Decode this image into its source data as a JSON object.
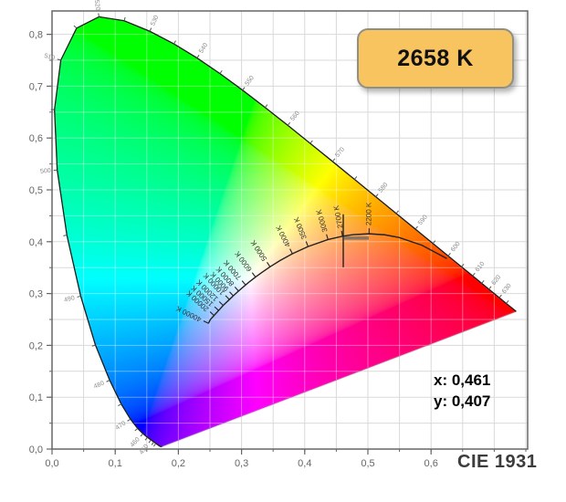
{
  "badge": {
    "label": "2658 K",
    "bg_color": "#f7c45f",
    "border_color": "#8f8f85"
  },
  "readout": {
    "x_line": "x: 0,461",
    "y_line": "y: 0,407"
  },
  "footer": {
    "label": "CIE 1931"
  },
  "chart_data": {
    "type": "area",
    "subtype": "cie-1931-xy-chromaticity-diagram",
    "title": "CIE 1931",
    "point": {
      "x": 0.461,
      "y": 0.407,
      "cct_label": "2658 K"
    },
    "axes": {
      "x": {
        "min": 0,
        "max": 0.7529,
        "grid_step": 0.05,
        "ticks": [
          {
            "v": 0.0,
            "label": "0,0"
          },
          {
            "v": 0.1,
            "label": "0,1"
          },
          {
            "v": 0.2,
            "label": "0,2"
          },
          {
            "v": 0.3,
            "label": "0,3"
          },
          {
            "v": 0.4,
            "label": "0,4"
          },
          {
            "v": 0.5,
            "label": "0,5"
          },
          {
            "v": 0.6,
            "label": "0,6"
          }
        ]
      },
      "y": {
        "min": 0,
        "max": 0.8451,
        "grid_step": 0.05,
        "ticks": [
          {
            "v": 0.0,
            "label": "0,0"
          },
          {
            "v": 0.1,
            "label": "0,1"
          },
          {
            "v": 0.2,
            "label": "0,2"
          },
          {
            "v": 0.3,
            "label": "0,3"
          },
          {
            "v": 0.4,
            "label": "0,4"
          },
          {
            "v": 0.5,
            "label": "0,5"
          },
          {
            "v": 0.6,
            "label": "0,6"
          },
          {
            "v": 0.7,
            "label": "0,7"
          },
          {
            "v": 0.8,
            "label": "0,8"
          }
        ]
      }
    },
    "spectral_locus": [
      [
        380,
        0.1741,
        0.005
      ],
      [
        390,
        0.1738,
        0.0049
      ],
      [
        400,
        0.1733,
        0.0048
      ],
      [
        410,
        0.1726,
        0.0048
      ],
      [
        420,
        0.1714,
        0.0051
      ],
      [
        430,
        0.1689,
        0.0069
      ],
      [
        440,
        0.1644,
        0.0109
      ],
      [
        445,
        0.1611,
        0.0138
      ],
      [
        450,
        0.1566,
        0.0177
      ],
      [
        455,
        0.151,
        0.0227
      ],
      [
        460,
        0.144,
        0.0297
      ],
      [
        465,
        0.1355,
        0.0399
      ],
      [
        470,
        0.1241,
        0.0578
      ],
      [
        475,
        0.1096,
        0.0868
      ],
      [
        480,
        0.0913,
        0.1327
      ],
      [
        485,
        0.0687,
        0.2007
      ],
      [
        490,
        0.0454,
        0.295
      ],
      [
        495,
        0.0235,
        0.4127
      ],
      [
        500,
        0.0082,
        0.5384
      ],
      [
        505,
        0.0039,
        0.6548
      ],
      [
        510,
        0.0139,
        0.7502
      ],
      [
        515,
        0.0389,
        0.812
      ],
      [
        520,
        0.0743,
        0.8338
      ],
      [
        525,
        0.1142,
        0.8262
      ],
      [
        530,
        0.1547,
        0.8059
      ],
      [
        535,
        0.1929,
        0.7816
      ],
      [
        540,
        0.2296,
        0.7543
      ],
      [
        545,
        0.2658,
        0.7243
      ],
      [
        550,
        0.3016,
        0.6923
      ],
      [
        555,
        0.3373,
        0.6589
      ],
      [
        560,
        0.3731,
        0.6245
      ],
      [
        565,
        0.4087,
        0.5896
      ],
      [
        570,
        0.4441,
        0.5547
      ],
      [
        575,
        0.4788,
        0.5202
      ],
      [
        580,
        0.5125,
        0.4866
      ],
      [
        585,
        0.5448,
        0.4544
      ],
      [
        590,
        0.5752,
        0.4242
      ],
      [
        595,
        0.6029,
        0.3965
      ],
      [
        600,
        0.627,
        0.3725
      ],
      [
        605,
        0.6482,
        0.3514
      ],
      [
        610,
        0.6658,
        0.334
      ],
      [
        615,
        0.6801,
        0.3197
      ],
      [
        620,
        0.6915,
        0.3083
      ],
      [
        630,
        0.7079,
        0.292
      ],
      [
        640,
        0.719,
        0.2809
      ],
      [
        650,
        0.726,
        0.274
      ],
      [
        700,
        0.7347,
        0.2653
      ]
    ],
    "wavelength_labels": [
      450,
      460,
      470,
      480,
      490,
      500,
      510,
      520,
      530,
      540,
      550,
      560,
      570,
      580,
      590,
      600,
      610,
      620,
      630
    ],
    "planckian_locus": [
      [
        1200,
        0.6249,
        0.3676
      ],
      [
        1500,
        0.5857,
        0.3931
      ],
      [
        1800,
        0.5493,
        0.4082
      ],
      [
        2000,
        0.5267,
        0.4133
      ],
      [
        2200,
        0.5018,
        0.4153
      ],
      [
        2500,
        0.477,
        0.4137
      ],
      [
        2700,
        0.4599,
        0.4106
      ],
      [
        3000,
        0.4369,
        0.4041
      ],
      [
        3500,
        0.4053,
        0.3907
      ],
      [
        4000,
        0.3805,
        0.3768
      ],
      [
        4500,
        0.3608,
        0.3636
      ],
      [
        5000,
        0.3451,
        0.3516
      ],
      [
        5500,
        0.3323,
        0.3408
      ],
      [
        6000,
        0.3221,
        0.3318
      ],
      [
        6500,
        0.3135,
        0.3237
      ],
      [
        7000,
        0.3064,
        0.3166
      ],
      [
        8000,
        0.2952,
        0.3048
      ],
      [
        9000,
        0.2869,
        0.2956
      ],
      [
        10000,
        0.2807,
        0.2884
      ],
      [
        12000,
        0.2709,
        0.277
      ],
      [
        15000,
        0.2637,
        0.2673
      ],
      [
        20000,
        0.2565,
        0.2577
      ],
      [
        30000,
        0.2506,
        0.2498
      ],
      [
        40000,
        0.2476,
        0.2425
      ]
    ],
    "temperature_labels": [
      {
        "t": 2200,
        "label": "2200 K"
      },
      {
        "t": 2700,
        "label": "2700 K"
      },
      {
        "t": 3000,
        "label": "3000 K"
      },
      {
        "t": 3500,
        "label": "3500 K"
      },
      {
        "t": 4000,
        "label": "4000 K"
      },
      {
        "t": 5000,
        "label": "5000 K"
      },
      {
        "t": 6000,
        "label": "6000 K"
      },
      {
        "t": 7000,
        "label": "7000 K"
      },
      {
        "t": 8000,
        "label": "8000 K"
      },
      {
        "t": 9000,
        "label": "9000 K"
      },
      {
        "t": 10000,
        "label": "10000 K"
      },
      {
        "t": 12000,
        "label": "12000 K"
      },
      {
        "t": 15000,
        "label": "15000 K"
      },
      {
        "t": 20000,
        "label": "20000 K"
      },
      {
        "t": 40000,
        "label": "40000 K"
      }
    ],
    "colors": {
      "grid": "#d9d9d9",
      "grid_over_gamut": "rgba(255,255,255,0.38)",
      "border": "#666666",
      "axis_text": "#666666",
      "locus_outline": "#1a1a1a",
      "planckian": "#222222",
      "wavelength_text": "#8a8a8a",
      "wavelength_tick": "#555555",
      "temperature_text": "#333333",
      "crosshair": "#222222",
      "crosshair_bar": "rgba(110,110,110,0.85)"
    }
  }
}
